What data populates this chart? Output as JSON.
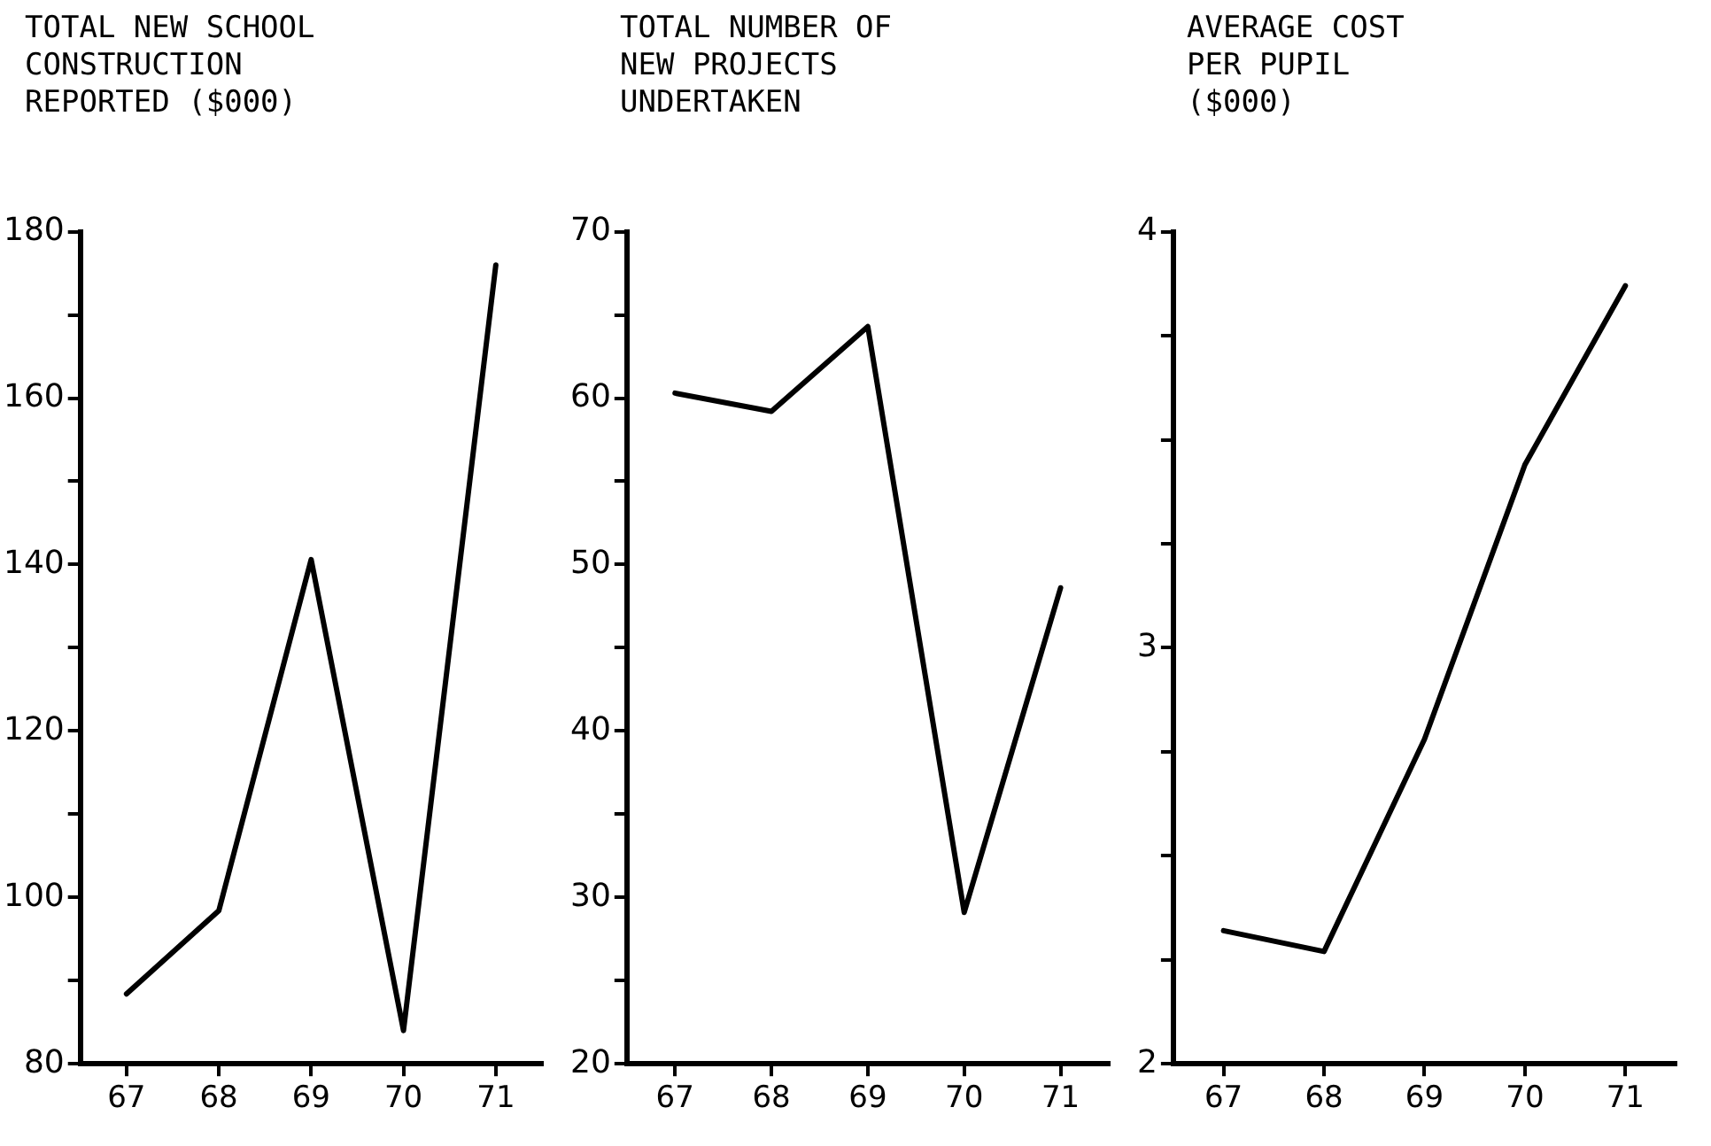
{
  "chart_data": [
    {
      "type": "line",
      "title": "TOTAL NEW SCHOOL\nCONSTRUCTION\nREPORTED ($000)",
      "categories": [
        "67",
        "68",
        "69",
        "70",
        "71"
      ],
      "values": [
        88.4,
        98.4,
        140.6,
        84,
        176
      ],
      "color": "#000000",
      "ylim": [
        80,
        180
      ],
      "yticks": [
        80,
        {
          "value": 90,
          "label": null
        },
        100,
        {
          "value": 110,
          "label": null
        },
        120,
        {
          "value": 130,
          "label": null
        },
        140,
        {
          "value": 150,
          "label": null
        },
        160,
        {
          "value": 170,
          "label": null
        },
        180
      ],
      "marker": "none"
    },
    {
      "type": "line",
      "title": "TOTAL NUMBER OF\nNEW PROJECTS\nUNDERTAKEN",
      "categories": [
        "67",
        "68",
        "69",
        "70",
        "71"
      ],
      "values": [
        60.3,
        59.2,
        64.3,
        29.1,
        48.6
      ],
      "color": "#000000",
      "ylim": [
        20,
        70
      ],
      "yticks": [
        20,
        {
          "value": 25,
          "label": null
        },
        30,
        {
          "value": 35,
          "label": null
        },
        40,
        {
          "value": 45,
          "label": null
        },
        50,
        {
          "value": 55,
          "label": null
        },
        60,
        {
          "value": 65,
          "label": null
        },
        70
      ],
      "marker": "none"
    },
    {
      "type": "line",
      "title": "AVERAGE COST\nPER PUPIL\n($000)",
      "categories": [
        "67",
        "68",
        "69",
        "70",
        "71"
      ],
      "values": [
        2.32,
        2.27,
        2.78,
        3.44,
        3.87
      ],
      "color": "#000000",
      "ylim": [
        2,
        4
      ],
      "yticks": [
        2,
        {
          "value": 2.25,
          "label": null
        },
        {
          "value": 2.5,
          "label": null
        },
        {
          "value": 2.75,
          "label": null
        },
        3,
        {
          "value": 3.25,
          "label": null
        },
        {
          "value": 3.5,
          "label": null
        },
        {
          "value": 3.75,
          "label": null
        },
        4
      ],
      "marker": "none"
    }
  ]
}
